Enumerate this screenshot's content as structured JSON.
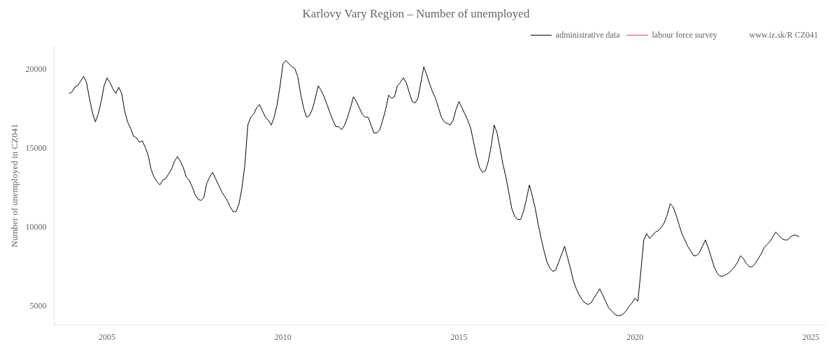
{
  "chart_data": {
    "type": "line",
    "title": "Karlovy Vary Region – Number of unemployed",
    "ylabel": "Number of unemployed in CZ041",
    "xlim": [
      2003.5,
      2025.4
    ],
    "xticks": [
      2005,
      2010,
      2015,
      2020,
      2025
    ],
    "ylim": [
      3800,
      21500
    ],
    "yticks": [
      5000,
      10000,
      15000,
      20000
    ],
    "grid": false,
    "legend": "upper right",
    "background_color": "#FFFFFF",
    "annotations": [
      "www.iz.sk/R CZ041"
    ],
    "x": [
      2003.917,
      2004.0,
      2004.083,
      2004.167,
      2004.25,
      2004.333,
      2004.417,
      2004.5,
      2004.583,
      2004.667,
      2004.75,
      2004.833,
      2004.917,
      2005.0,
      2005.083,
      2005.167,
      2005.25,
      2005.333,
      2005.417,
      2005.5,
      2005.583,
      2005.667,
      2005.75,
      2005.833,
      2005.917,
      2006.0,
      2006.083,
      2006.167,
      2006.25,
      2006.333,
      2006.417,
      2006.5,
      2006.583,
      2006.667,
      2006.75,
      2006.833,
      2006.917,
      2007.0,
      2007.083,
      2007.167,
      2007.25,
      2007.333,
      2007.417,
      2007.5,
      2007.583,
      2007.667,
      2007.75,
      2007.833,
      2007.917,
      2008.0,
      2008.083,
      2008.167,
      2008.25,
      2008.333,
      2008.417,
      2008.5,
      2008.583,
      2008.667,
      2008.75,
      2008.833,
      2008.917,
      2009.0,
      2009.083,
      2009.167,
      2009.25,
      2009.333,
      2009.417,
      2009.5,
      2009.583,
      2009.667,
      2009.75,
      2009.833,
      2009.917,
      2010.0,
      2010.083,
      2010.167,
      2010.25,
      2010.333,
      2010.417,
      2010.5,
      2010.583,
      2010.667,
      2010.75,
      2010.833,
      2010.917,
      2011.0,
      2011.083,
      2011.167,
      2011.25,
      2011.333,
      2011.417,
      2011.5,
      2011.583,
      2011.667,
      2011.75,
      2011.833,
      2011.917,
      2012.0,
      2012.083,
      2012.167,
      2012.25,
      2012.333,
      2012.417,
      2012.5,
      2012.583,
      2012.667,
      2012.75,
      2012.833,
      2012.917,
      2013.0,
      2013.083,
      2013.167,
      2013.25,
      2013.333,
      2013.417,
      2013.5,
      2013.583,
      2013.667,
      2013.75,
      2013.833,
      2013.917,
      2014.0,
      2014.083,
      2014.167,
      2014.25,
      2014.333,
      2014.417,
      2014.5,
      2014.583,
      2014.667,
      2014.75,
      2014.833,
      2014.917,
      2015.0,
      2015.083,
      2015.167,
      2015.25,
      2015.333,
      2015.417,
      2015.5,
      2015.583,
      2015.667,
      2015.75,
      2015.833,
      2015.917,
      2016.0,
      2016.083,
      2016.167,
      2016.25,
      2016.333,
      2016.417,
      2016.5,
      2016.583,
      2016.667,
      2016.75,
      2016.833,
      2016.917,
      2017.0,
      2017.083,
      2017.167,
      2017.25,
      2017.333,
      2017.417,
      2017.5,
      2017.583,
      2017.667,
      2017.75,
      2017.833,
      2017.917,
      2018.0,
      2018.083,
      2018.167,
      2018.25,
      2018.333,
      2018.417,
      2018.5,
      2018.583,
      2018.667,
      2018.75,
      2018.833,
      2018.917,
      2019.0,
      2019.083,
      2019.167,
      2019.25,
      2019.333,
      2019.417,
      2019.5,
      2019.583,
      2019.667,
      2019.75,
      2019.833,
      2019.917,
      2020.0,
      2020.083,
      2020.167,
      2020.25,
      2020.333,
      2020.417,
      2020.5,
      2020.583,
      2020.667,
      2020.75,
      2020.833,
      2020.917,
      2021.0,
      2021.083,
      2021.167,
      2021.25,
      2021.333,
      2021.417,
      2021.5,
      2021.583,
      2021.667,
      2021.75,
      2021.833,
      2021.917,
      2022.0,
      2022.083,
      2022.167,
      2022.25,
      2022.333,
      2022.417,
      2022.5,
      2022.583,
      2022.667,
      2022.75,
      2022.833,
      2022.917,
      2023.0,
      2023.083,
      2023.167,
      2023.25,
      2023.333,
      2023.417,
      2023.5,
      2023.583,
      2023.667,
      2023.75,
      2023.833,
      2023.917,
      2024.0,
      2024.083,
      2024.167,
      2024.25,
      2024.333,
      2024.417,
      2024.5,
      2024.583,
      2024.667
    ],
    "series": [
      {
        "name": "administrative data",
        "color": "#000000",
        "line_style": "solid",
        "values": [
          18500,
          18600,
          18900,
          19000,
          19300,
          19600,
          19200,
          18200,
          17300,
          16700,
          17200,
          18000,
          19000,
          19500,
          19200,
          18800,
          18500,
          18900,
          18500,
          17400,
          16700,
          16300,
          15800,
          15700,
          15400,
          15500,
          15100,
          14600,
          13700,
          13200,
          12900,
          12700,
          13000,
          13100,
          13400,
          13700,
          14200,
          14500,
          14200,
          13800,
          13200,
          13000,
          12600,
          12100,
          11800,
          11700,
          11900,
          12800,
          13200,
          13500,
          13100,
          12700,
          12300,
          12000,
          11700,
          11300,
          11000,
          11000,
          11500,
          12500,
          14000,
          16500,
          17000,
          17200,
          17600,
          17800,
          17400,
          17000,
          16800,
          16500,
          17000,
          17800,
          19000,
          20400,
          20600,
          20400,
          20200,
          20100,
          19600,
          18500,
          17600,
          17000,
          17100,
          17500,
          18200,
          19000,
          18700,
          18300,
          17800,
          17300,
          16800,
          16400,
          16400,
          16200,
          16500,
          17000,
          17600,
          18300,
          18000,
          17600,
          17200,
          17000,
          17000,
          16500,
          16000,
          16000,
          16200,
          16800,
          17500,
          18400,
          18200,
          18300,
          19000,
          19200,
          19500,
          19200,
          18600,
          18000,
          17900,
          18200,
          19200,
          20200,
          19700,
          19100,
          18600,
          18200,
          17600,
          17000,
          16700,
          16600,
          16500,
          16800,
          17500,
          18000,
          17600,
          17200,
          16800,
          16300,
          15400,
          14500,
          13800,
          13500,
          13600,
          14200,
          15200,
          16500,
          16000,
          15000,
          14000,
          13200,
          12200,
          11200,
          10700,
          10500,
          10500,
          11000,
          11800,
          12700,
          12000,
          11200,
          10200,
          9300,
          8500,
          7800,
          7400,
          7200,
          7300,
          7800,
          8300,
          8800,
          8100,
          7400,
          6600,
          6100,
          5700,
          5400,
          5200,
          5100,
          5200,
          5500,
          5800,
          6100,
          5700,
          5300,
          4900,
          4700,
          4500,
          4400,
          4400,
          4500,
          4700,
          5000,
          5200,
          5500,
          5300,
          7200,
          9200,
          9600,
          9300,
          9500,
          9700,
          9800,
          10000,
          10300,
          10800,
          11500,
          11300,
          10800,
          10200,
          9600,
          9200,
          8800,
          8500,
          8200,
          8200,
          8400,
          8800,
          9200,
          8700,
          8100,
          7500,
          7100,
          6900,
          6900,
          7000,
          7100,
          7300,
          7500,
          7800,
          8200,
          8000,
          7700,
          7500,
          7500,
          7700,
          8000,
          8300,
          8700,
          8900,
          9100,
          9400,
          9700,
          9500,
          9300,
          9200,
          9200,
          9400,
          9500,
          9500,
          9400
        ]
      },
      {
        "name": "labour force survey",
        "color": "#FF4444",
        "line_style": "dashed",
        "values": [
          null,
          null,
          null,
          null,
          null,
          null,
          null,
          null,
          null,
          null,
          null,
          null,
          null,
          null,
          null,
          null,
          null,
          null,
          null,
          null,
          null,
          null,
          null,
          null,
          null,
          null,
          null,
          null,
          null,
          null,
          null,
          null,
          null,
          null,
          null,
          null,
          null,
          null,
          null,
          null,
          null,
          null,
          null,
          null,
          null,
          null,
          null,
          null,
          null,
          null,
          null,
          null,
          null,
          null,
          null,
          null,
          null,
          null,
          null,
          null,
          null,
          null,
          null,
          null,
          null,
          null,
          null,
          null,
          null,
          null,
          null,
          null,
          null,
          null,
          null,
          null,
          null,
          null,
          null,
          null,
          null,
          null,
          null,
          null,
          null,
          null,
          null,
          null,
          null,
          null,
          null,
          null,
          null,
          null,
          null,
          null,
          null,
          null,
          null,
          null,
          null,
          null,
          null,
          null,
          null,
          null,
          null,
          null,
          null,
          null,
          null,
          null,
          null,
          null,
          null,
          null,
          null,
          null,
          null,
          null,
          null,
          null,
          null,
          null,
          null,
          null,
          null,
          null,
          null,
          null,
          null,
          null,
          null,
          null,
          null,
          null,
          null,
          null,
          null,
          null,
          null,
          null,
          null,
          null,
          null,
          null,
          null,
          null,
          null,
          null,
          null,
          null,
          null,
          null,
          null,
          null,
          null,
          null,
          null,
          null,
          null,
          null,
          null,
          null,
          null,
          null,
          null,
          null,
          null,
          null,
          null,
          null,
          null,
          null,
          null,
          null,
          null,
          null,
          null,
          null,
          null,
          null,
          null,
          null,
          null,
          null,
          null,
          null,
          null,
          null,
          null,
          null,
          null,
          null,
          null,
          null,
          null,
          null,
          null,
          null,
          null,
          null,
          null,
          null,
          null,
          null,
          null,
          null,
          null,
          null,
          null,
          null,
          null,
          null,
          null,
          null,
          null,
          null,
          null,
          null,
          null,
          null,
          null,
          null,
          null,
          null,
          null,
          null,
          null,
          null,
          null,
          null,
          null,
          null,
          null,
          null,
          null,
          null,
          null,
          null,
          null,
          null,
          null,
          null,
          null,
          null,
          null,
          null,
          null,
          null
        ]
      }
    ]
  }
}
